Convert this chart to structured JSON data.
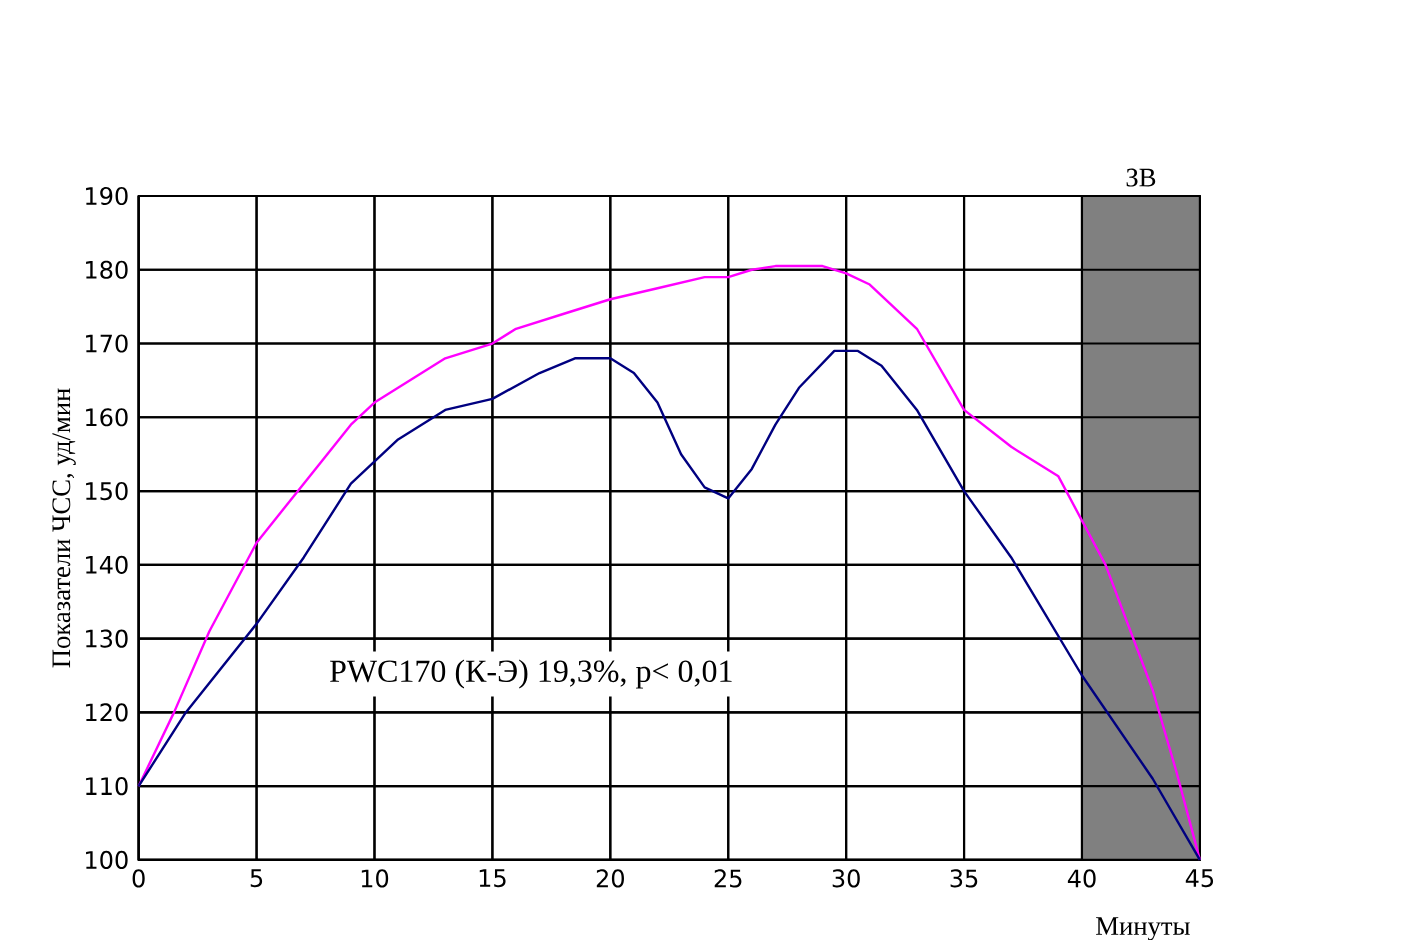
{
  "chart_data": {
    "type": "line",
    "xlabel": "Минуты",
    "ylabel": "Показатели ЧСС, уд/мин",
    "annotations": [
      "PWC170 (К-Э)  19,3%, p< 0,01"
    ],
    "xlim": [
      0,
      45
    ],
    "xticks": [
      0,
      5,
      10,
      15,
      20,
      25,
      30,
      35,
      40,
      45
    ],
    "ylim": [
      100,
      190
    ],
    "yticks": [
      100,
      110,
      120,
      130,
      140,
      150,
      160,
      170,
      180,
      190
    ],
    "grid": true,
    "line_style": "solid",
    "marker": "none",
    "bands": [
      {
        "axis": "x",
        "from": 40,
        "to": 45,
        "label": "ЗВ",
        "color": "#808080"
      }
    ],
    "series": [
      {
        "color": "#ff00ff",
        "x": [
          0,
          1.5,
          3,
          5,
          7,
          9,
          10,
          12,
          13,
          15,
          16,
          18,
          20,
          22,
          24,
          25,
          26,
          27,
          29,
          30,
          31,
          33,
          35,
          37,
          39,
          40,
          41,
          43,
          44,
          45
        ],
        "values": [
          110,
          120,
          131,
          143,
          151,
          159,
          162,
          166,
          168,
          170,
          172,
          174,
          176,
          177.5,
          179,
          179,
          180,
          180.5,
          180.5,
          179.5,
          178,
          172,
          161,
          156,
          152,
          146,
          140,
          123,
          112,
          100
        ]
      },
      {
        "color": "#000080",
        "x": [
          0,
          2,
          5,
          7,
          9,
          11,
          13,
          15,
          17,
          18.5,
          20,
          21,
          22,
          23,
          24,
          25,
          26,
          27,
          28,
          29.5,
          30.5,
          31.5,
          33,
          35,
          37,
          40,
          43,
          45
        ],
        "values": [
          110,
          120,
          132,
          141,
          151,
          157,
          161,
          162.5,
          166,
          168,
          168,
          166,
          162,
          155,
          150.5,
          149,
          153,
          159,
          164,
          169,
          169,
          167,
          161,
          150,
          141,
          125,
          111,
          100
        ]
      }
    ]
  }
}
